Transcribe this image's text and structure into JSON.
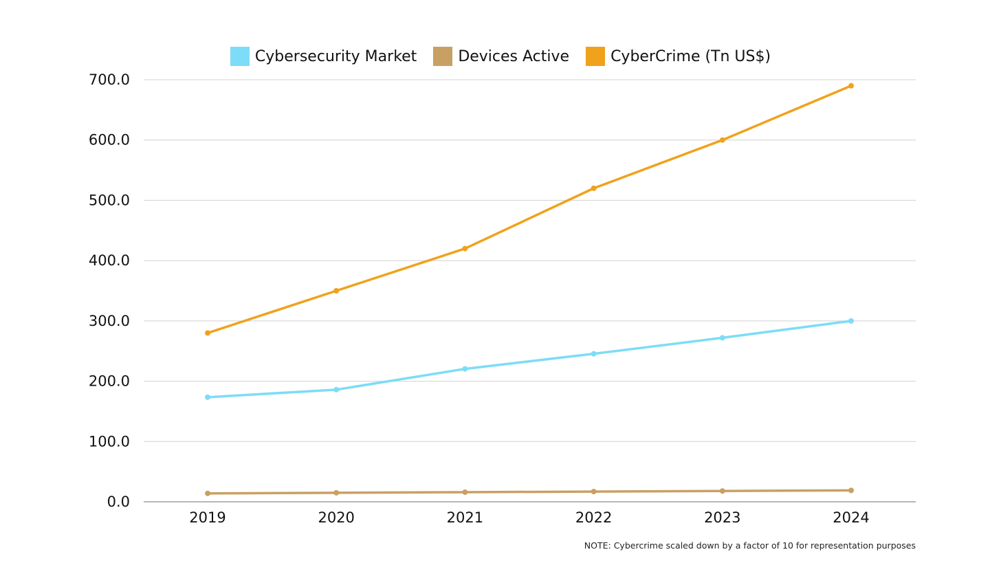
{
  "chart_data": {
    "type": "line",
    "title": "",
    "xlabel": "",
    "ylabel": "",
    "categories": [
      "2019",
      "2020",
      "2021",
      "2022",
      "2023",
      "2024"
    ],
    "ylim": [
      0,
      700
    ],
    "yticks": [
      0,
      100,
      200,
      300,
      400,
      500,
      600,
      700
    ],
    "ytick_labels": [
      "0.0",
      "100.0",
      "200.0",
      "300.0",
      "400.0",
      "500.0",
      "600.0",
      "700.0"
    ],
    "grid": "horizontal",
    "legend_position": "top-center",
    "series": [
      {
        "name": "Cybersecurity Market",
        "color": "#7ddcf7",
        "values": [
          173.5,
          186,
          220.5,
          245.5,
          272,
          300
        ]
      },
      {
        "name": "Devices Active",
        "color": "#c9a063",
        "values": [
          14,
          15,
          16,
          17,
          18,
          19
        ]
      },
      {
        "name": "CyberCrime (Tn US$)",
        "color": "#f0a21c",
        "values": [
          280,
          350,
          420,
          520,
          600,
          690
        ]
      }
    ],
    "note": "NOTE: Cybercrime scaled down by a factor of 10 for representation purposes"
  }
}
